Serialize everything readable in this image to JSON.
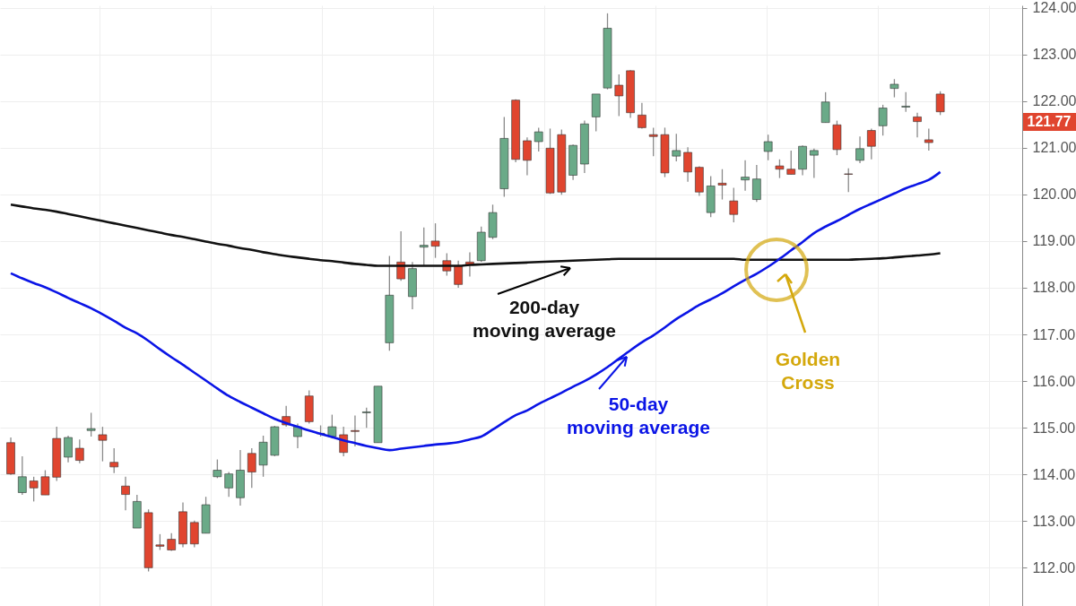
{
  "chart_data": {
    "type": "candlestick",
    "categories": [
      null,
      null,
      null,
      null,
      null,
      null,
      null,
      null,
      null,
      null,
      null,
      null,
      null,
      null,
      null,
      null,
      null,
      null,
      null,
      null,
      null,
      null,
      null,
      null,
      null,
      null,
      null,
      null,
      null,
      null,
      null,
      null,
      null,
      null,
      null,
      null,
      null,
      null,
      null,
      null,
      null,
      null,
      null,
      null,
      null,
      null,
      null,
      null,
      null,
      null,
      null,
      null,
      null,
      null,
      null,
      null,
      null,
      null,
      null,
      null,
      null,
      null,
      null,
      null,
      null,
      null,
      null,
      null,
      null,
      null,
      null,
      null,
      null,
      null,
      null,
      null,
      null,
      null,
      null,
      null,
      null,
      null
    ],
    "ohlc": [
      [
        114.68,
        114.79,
        113.99,
        114.01
      ],
      [
        113.61,
        114.39,
        113.56,
        113.95
      ],
      [
        113.86,
        113.95,
        113.42,
        113.71
      ],
      [
        113.95,
        114.09,
        113.56,
        113.56
      ],
      [
        114.77,
        115.02,
        113.86,
        113.94
      ],
      [
        114.37,
        114.83,
        114.26,
        114.79
      ],
      [
        114.56,
        114.75,
        114.24,
        114.3
      ],
      [
        114.94,
        115.32,
        114.81,
        114.98
      ],
      [
        114.85,
        115.02,
        114.28,
        114.73
      ],
      [
        114.26,
        114.56,
        114.03,
        114.16
      ],
      [
        113.75,
        113.95,
        113.23,
        113.57
      ],
      [
        112.85,
        113.56,
        112.85,
        113.42
      ],
      [
        113.18,
        113.25,
        111.92,
        112.0
      ],
      [
        112.49,
        112.72,
        112.38,
        112.46
      ],
      [
        112.61,
        112.74,
        112.36,
        112.38
      ],
      [
        113.2,
        113.4,
        112.44,
        112.51
      ],
      [
        112.97,
        113.01,
        112.44,
        112.51
      ],
      [
        112.74,
        113.52,
        112.74,
        113.35
      ],
      [
        113.95,
        114.32,
        113.92,
        114.09
      ],
      [
        113.71,
        114.05,
        113.52,
        114.01
      ],
      [
        113.5,
        114.52,
        113.33,
        114.09
      ],
      [
        114.45,
        114.56,
        113.71,
        114.05
      ],
      [
        114.2,
        114.83,
        113.95,
        114.69
      ],
      [
        114.41,
        115.04,
        114.39,
        115.02
      ],
      [
        115.24,
        115.47,
        115.02,
        115.06
      ],
      [
        114.81,
        115.09,
        114.56,
        115.02
      ],
      [
        115.68,
        115.8,
        115.09,
        115.13
      ],
      [
        114.87,
        115.05,
        114.81,
        114.88
      ],
      [
        114.81,
        115.28,
        114.77,
        115.02
      ],
      [
        114.85,
        115.02,
        114.39,
        114.47
      ],
      [
        114.94,
        115.26,
        114.6,
        114.92
      ],
      [
        115.32,
        115.43,
        115.0,
        115.34
      ],
      [
        114.68,
        115.89,
        114.68,
        115.89
      ],
      [
        116.82,
        118.68,
        116.65,
        117.84
      ],
      [
        118.55,
        119.21,
        118.15,
        118.19
      ],
      [
        117.81,
        118.55,
        117.54,
        118.41
      ],
      [
        118.87,
        119.29,
        118.47,
        118.91
      ],
      [
        119.0,
        119.38,
        118.64,
        118.89
      ],
      [
        118.58,
        118.74,
        118.26,
        118.36
      ],
      [
        118.47,
        118.58,
        118.0,
        118.07
      ],
      [
        118.55,
        118.76,
        118.24,
        118.49
      ],
      [
        118.58,
        119.31,
        118.55,
        119.19
      ],
      [
        119.08,
        119.78,
        119.04,
        119.61
      ],
      [
        120.12,
        121.66,
        119.95,
        121.2
      ],
      [
        122.02,
        122.04,
        120.69,
        120.75
      ],
      [
        121.15,
        121.22,
        120.41,
        120.73
      ],
      [
        121.13,
        121.43,
        120.92,
        121.34
      ],
      [
        120.99,
        121.41,
        120.01,
        120.03
      ],
      [
        121.28,
        121.39,
        119.99,
        120.05
      ],
      [
        120.41,
        121.07,
        120.31,
        121.05
      ],
      [
        120.65,
        121.58,
        120.46,
        121.51
      ],
      [
        121.66,
        122.15,
        121.35,
        122.15
      ],
      [
        122.28,
        123.88,
        122.25,
        123.56
      ],
      [
        122.34,
        122.57,
        121.68,
        122.11
      ],
      [
        122.65,
        122.66,
        121.64,
        121.75
      ],
      [
        121.7,
        121.96,
        121.41,
        121.43
      ],
      [
        121.28,
        121.43,
        120.82,
        121.24
      ],
      [
        121.28,
        121.43,
        120.37,
        120.46
      ],
      [
        120.82,
        121.3,
        120.71,
        120.94
      ],
      [
        120.9,
        121.01,
        120.27,
        120.48
      ],
      [
        120.58,
        120.6,
        119.97,
        120.05
      ],
      [
        119.61,
        120.39,
        119.51,
        120.18
      ],
      [
        120.24,
        120.54,
        119.89,
        120.2
      ],
      [
        119.86,
        120.14,
        119.4,
        119.57
      ],
      [
        120.31,
        120.73,
        120.08,
        120.37
      ],
      [
        119.89,
        120.63,
        119.84,
        120.33
      ],
      [
        120.92,
        121.28,
        120.73,
        121.13
      ],
      [
        120.61,
        120.75,
        120.35,
        120.54
      ],
      [
        120.54,
        120.94,
        120.43,
        120.43
      ],
      [
        120.54,
        121.05,
        120.41,
        121.03
      ],
      [
        120.84,
        120.98,
        120.35,
        120.94
      ],
      [
        121.54,
        122.19,
        121.54,
        121.98
      ],
      [
        121.49,
        121.58,
        120.84,
        120.96
      ],
      [
        120.44,
        120.56,
        120.05,
        120.43
      ],
      [
        120.73,
        121.24,
        120.67,
        120.98
      ],
      [
        121.37,
        121.41,
        120.75,
        121.03
      ],
      [
        121.47,
        121.92,
        121.26,
        121.85
      ],
      [
        122.27,
        122.47,
        122.08,
        122.36
      ],
      [
        121.87,
        122.19,
        121.77,
        121.89
      ],
      [
        121.66,
        121.75,
        121.22,
        121.56
      ],
      [
        121.17,
        121.41,
        120.94,
        121.11
      ],
      [
        122.15,
        122.21,
        121.7,
        121.77
      ]
    ],
    "colors": [
      "#e0452f",
      "#6aaa88",
      "#e0452f",
      "#e0452f",
      "#e0452f",
      "#6aaa88",
      "#e0452f",
      "#6aaa88",
      "#e0452f",
      "#e0452f",
      "#e0452f",
      "#6aaa88",
      "#e0452f",
      "#e0452f",
      "#e0452f",
      "#e0452f",
      "#e0452f",
      "#6aaa88",
      "#6aaa88",
      "#6aaa88",
      "#6aaa88",
      "#e0452f",
      "#6aaa88",
      "#6aaa88",
      "#e0452f",
      "#6aaa88",
      "#e0452f",
      "#6aaa88",
      "#6aaa88",
      "#e0452f",
      "#e0452f",
      "#6aaa88",
      "#6aaa88",
      "#6aaa88",
      "#e0452f",
      "#6aaa88",
      "#6aaa88",
      "#e0452f",
      "#e0452f",
      "#e0452f",
      "#e0452f",
      "#6aaa88",
      "#6aaa88",
      "#6aaa88",
      "#e0452f",
      "#e0452f",
      "#6aaa88",
      "#e0452f",
      "#e0452f",
      "#6aaa88",
      "#6aaa88",
      "#6aaa88",
      "#6aaa88",
      "#e0452f",
      "#e0452f",
      "#e0452f",
      "#e0452f",
      "#e0452f",
      "#6aaa88",
      "#e0452f",
      "#e0452f",
      "#6aaa88",
      "#e0452f",
      "#e0452f",
      "#6aaa88",
      "#6aaa88",
      "#6aaa88",
      "#e0452f",
      "#e0452f",
      "#6aaa88",
      "#6aaa88",
      "#6aaa88",
      "#e0452f",
      "#e0452f",
      "#6aaa88",
      "#e0452f",
      "#6aaa88",
      "#6aaa88",
      "#6aaa88",
      "#e0452f",
      "#e0452f",
      "#e0452f"
    ],
    "series": [
      {
        "type": "line",
        "name": "200-day moving average",
        "color": "#111111",
        "values": [
          119.78,
          119.74,
          119.7,
          119.67,
          119.63,
          119.58,
          119.53,
          119.48,
          119.43,
          119.38,
          119.33,
          119.28,
          119.23,
          119.18,
          119.13,
          119.09,
          119.04,
          118.99,
          118.94,
          118.9,
          118.85,
          118.81,
          118.76,
          118.72,
          118.68,
          118.65,
          118.62,
          118.59,
          118.57,
          118.54,
          118.51,
          118.49,
          118.47,
          118.47,
          118.47,
          118.47,
          118.47,
          118.47,
          118.47,
          118.47,
          118.49,
          118.5,
          118.51,
          118.52,
          118.53,
          118.54,
          118.55,
          118.56,
          118.57,
          118.58,
          118.59,
          118.6,
          118.61,
          118.62,
          118.62,
          118.62,
          118.62,
          118.62,
          118.62,
          118.62,
          118.62,
          118.62,
          118.62,
          118.62,
          118.6,
          118.6,
          118.6,
          118.6,
          118.6,
          118.6,
          118.6,
          118.6,
          118.6,
          118.6,
          118.61,
          118.62,
          118.63,
          118.65,
          118.67,
          118.69,
          118.71,
          118.74
        ]
      },
      {
        "type": "line",
        "name": "50-day moving average",
        "color": "#0a14e6",
        "values": [
          118.31,
          118.2,
          118.1,
          118.01,
          117.9,
          117.78,
          117.67,
          117.56,
          117.43,
          117.29,
          117.14,
          117.02,
          116.86,
          116.68,
          116.51,
          116.35,
          116.18,
          116.01,
          115.84,
          115.68,
          115.55,
          115.43,
          115.31,
          115.19,
          115.1,
          115.02,
          114.94,
          114.87,
          114.8,
          114.73,
          114.67,
          114.61,
          114.56,
          114.52,
          114.55,
          114.58,
          114.61,
          114.64,
          114.66,
          114.69,
          114.75,
          114.81,
          114.96,
          115.12,
          115.27,
          115.37,
          115.51,
          115.63,
          115.75,
          115.88,
          116.0,
          116.14,
          116.3,
          116.48,
          116.66,
          116.83,
          116.98,
          117.15,
          117.33,
          117.48,
          117.63,
          117.75,
          117.88,
          118.03,
          118.17,
          118.3,
          118.45,
          118.62,
          118.8,
          118.98,
          119.17,
          119.31,
          119.43,
          119.56,
          119.69,
          119.8,
          119.91,
          120.02,
          120.13,
          120.22,
          120.31,
          120.48
        ]
      }
    ],
    "annotations": [
      "Golden Cross",
      "121.77"
    ],
    "ylim": [
      111.18,
      124.05
    ],
    "yticks": [
      {
        "value": 112,
        "label": "112.00"
      },
      {
        "value": 113,
        "label": "113.00"
      },
      {
        "value": 114,
        "label": "114.00"
      },
      {
        "value": 115,
        "label": "115.00"
      },
      {
        "value": 116,
        "label": "116.00"
      },
      {
        "value": 117,
        "label": "117.00"
      },
      {
        "value": 118,
        "label": "118.00"
      },
      {
        "value": 119,
        "label": "119.00"
      },
      {
        "value": 120,
        "label": "120.00"
      },
      {
        "value": 121,
        "label": "121.00"
      },
      {
        "value": 122,
        "label": "122.00"
      },
      {
        "value": 123,
        "label": "123.00"
      },
      {
        "value": 124,
        "label": "124.00"
      }
    ],
    "grid": true,
    "legend": "bottom",
    "tick_labels": "y"
  }
}
